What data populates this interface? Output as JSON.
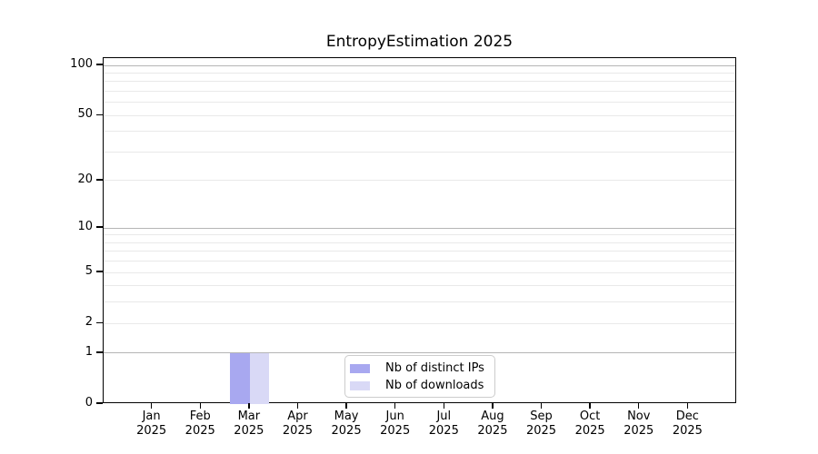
{
  "chart_data": {
    "type": "bar",
    "title": "EntropyEstimation 2025",
    "categories": [
      {
        "month": "Jan",
        "year": "2025"
      },
      {
        "month": "Feb",
        "year": "2025"
      },
      {
        "month": "Mar",
        "year": "2025"
      },
      {
        "month": "Apr",
        "year": "2025"
      },
      {
        "month": "May",
        "year": "2025"
      },
      {
        "month": "Jun",
        "year": "2025"
      },
      {
        "month": "Jul",
        "year": "2025"
      },
      {
        "month": "Aug",
        "year": "2025"
      },
      {
        "month": "Sep",
        "year": "2025"
      },
      {
        "month": "Oct",
        "year": "2025"
      },
      {
        "month": "Nov",
        "year": "2025"
      },
      {
        "month": "Dec",
        "year": "2025"
      }
    ],
    "series": [
      {
        "name": "Nb of distinct IPs",
        "color": "#a8a8f0",
        "values": [
          0,
          0,
          1,
          0,
          0,
          0,
          0,
          0,
          0,
          0,
          0,
          0
        ]
      },
      {
        "name": "Nb of downloads",
        "color": "#d9d9f6",
        "values": [
          0,
          0,
          1,
          0,
          0,
          0,
          0,
          0,
          0,
          0,
          0,
          0
        ]
      }
    ],
    "y_axis": {
      "scale": "log1p",
      "ticks": [
        100,
        50,
        20,
        10,
        5,
        2,
        1,
        0
      ],
      "major_grid_values": [
        1,
        10,
        100
      ],
      "minor_grid_values": [
        2,
        3,
        4,
        5,
        6,
        7,
        8,
        9,
        20,
        30,
        40,
        50,
        60,
        70,
        80,
        90
      ],
      "min": 0,
      "max": 110
    },
    "grid": true,
    "legend_position": "lower center"
  },
  "colors": {
    "major_grid": "#b5b5b5",
    "minor_grid": "#e9e9e9",
    "axis": "#000000",
    "background": "#ffffff"
  }
}
